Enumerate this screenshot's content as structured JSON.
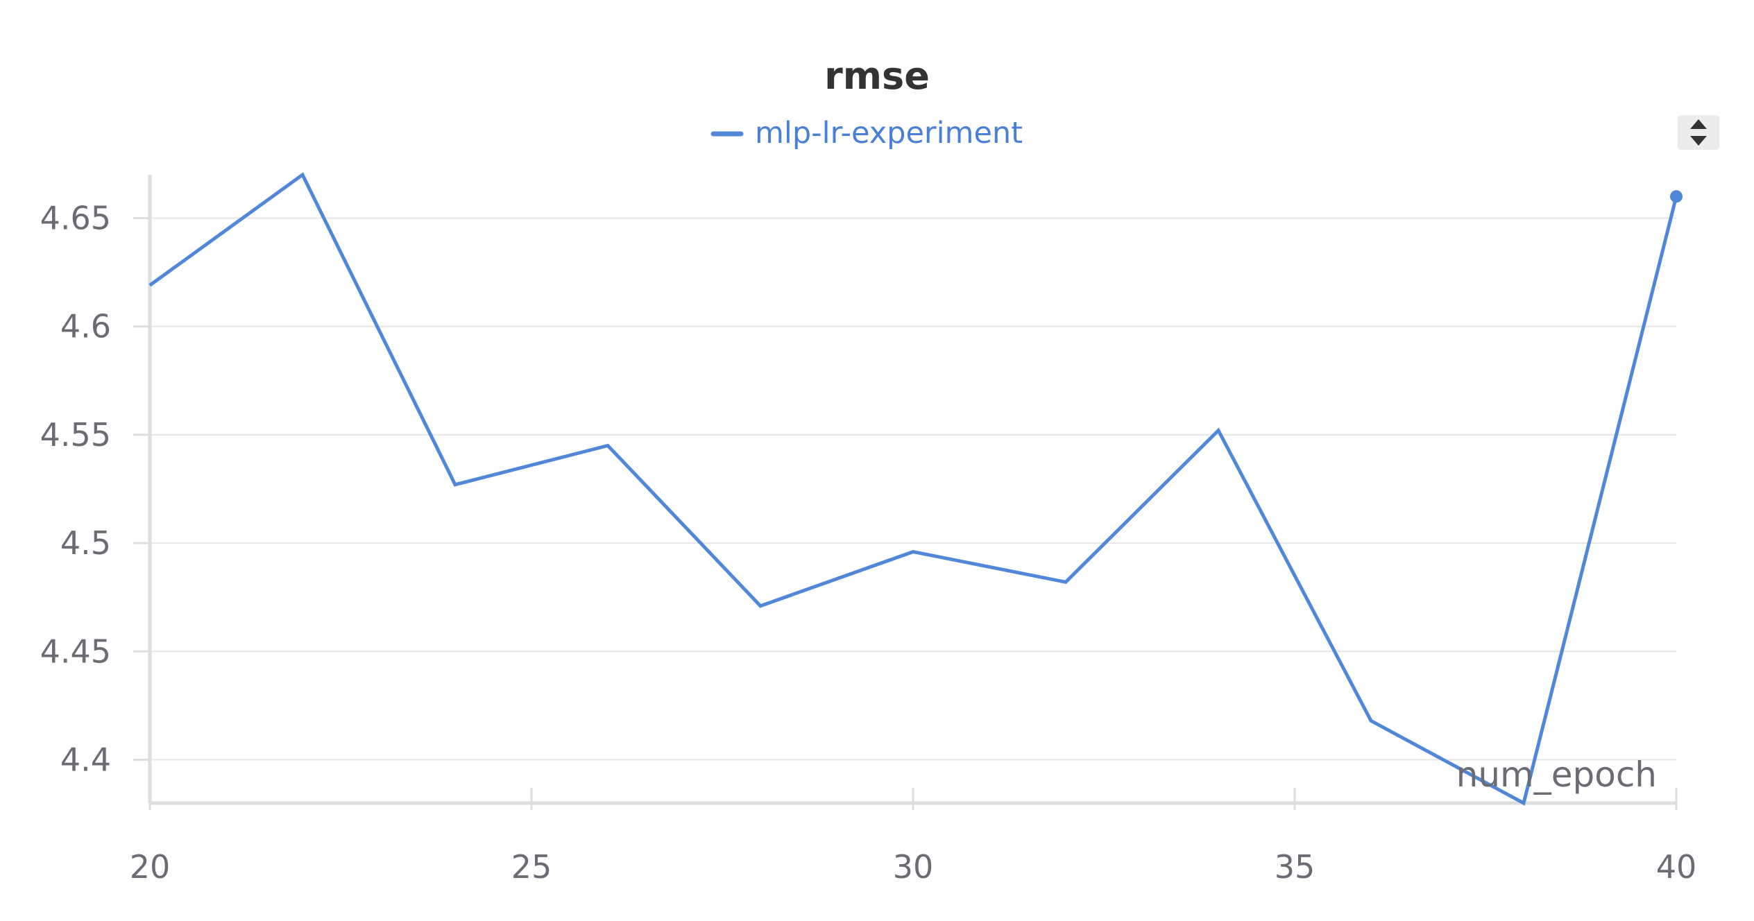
{
  "colors": {
    "series": "#5087d8",
    "grid": "#e6e6e6",
    "axis": "#dedede",
    "tick_text": "#6b6b73",
    "title": "#333333"
  },
  "controls": {
    "sort_icon": "sort-up-down-icon"
  },
  "chart_data": {
    "type": "line",
    "title": "rmse",
    "xlabel": "num_epoch",
    "ylabel": "",
    "xlim": [
      20,
      40
    ],
    "ylim": [
      4.38,
      4.67
    ],
    "x_ticks": [
      20,
      25,
      30,
      35,
      40
    ],
    "y_ticks": [
      4.4,
      4.45,
      4.5,
      4.55,
      4.6,
      4.65
    ],
    "y_tick_labels": [
      "4.4",
      "4.45",
      "4.5",
      "4.55",
      "4.6",
      "4.65"
    ],
    "grid": true,
    "legend": "top-center",
    "series": [
      {
        "name": "mlp-lr-experiment",
        "x": [
          20,
          22,
          24,
          26,
          28,
          30,
          32,
          34,
          36,
          38,
          40
        ],
        "values": [
          4.619,
          4.67,
          4.527,
          4.545,
          4.471,
          4.496,
          4.482,
          4.552,
          4.418,
          4.38,
          4.66
        ]
      }
    ]
  }
}
